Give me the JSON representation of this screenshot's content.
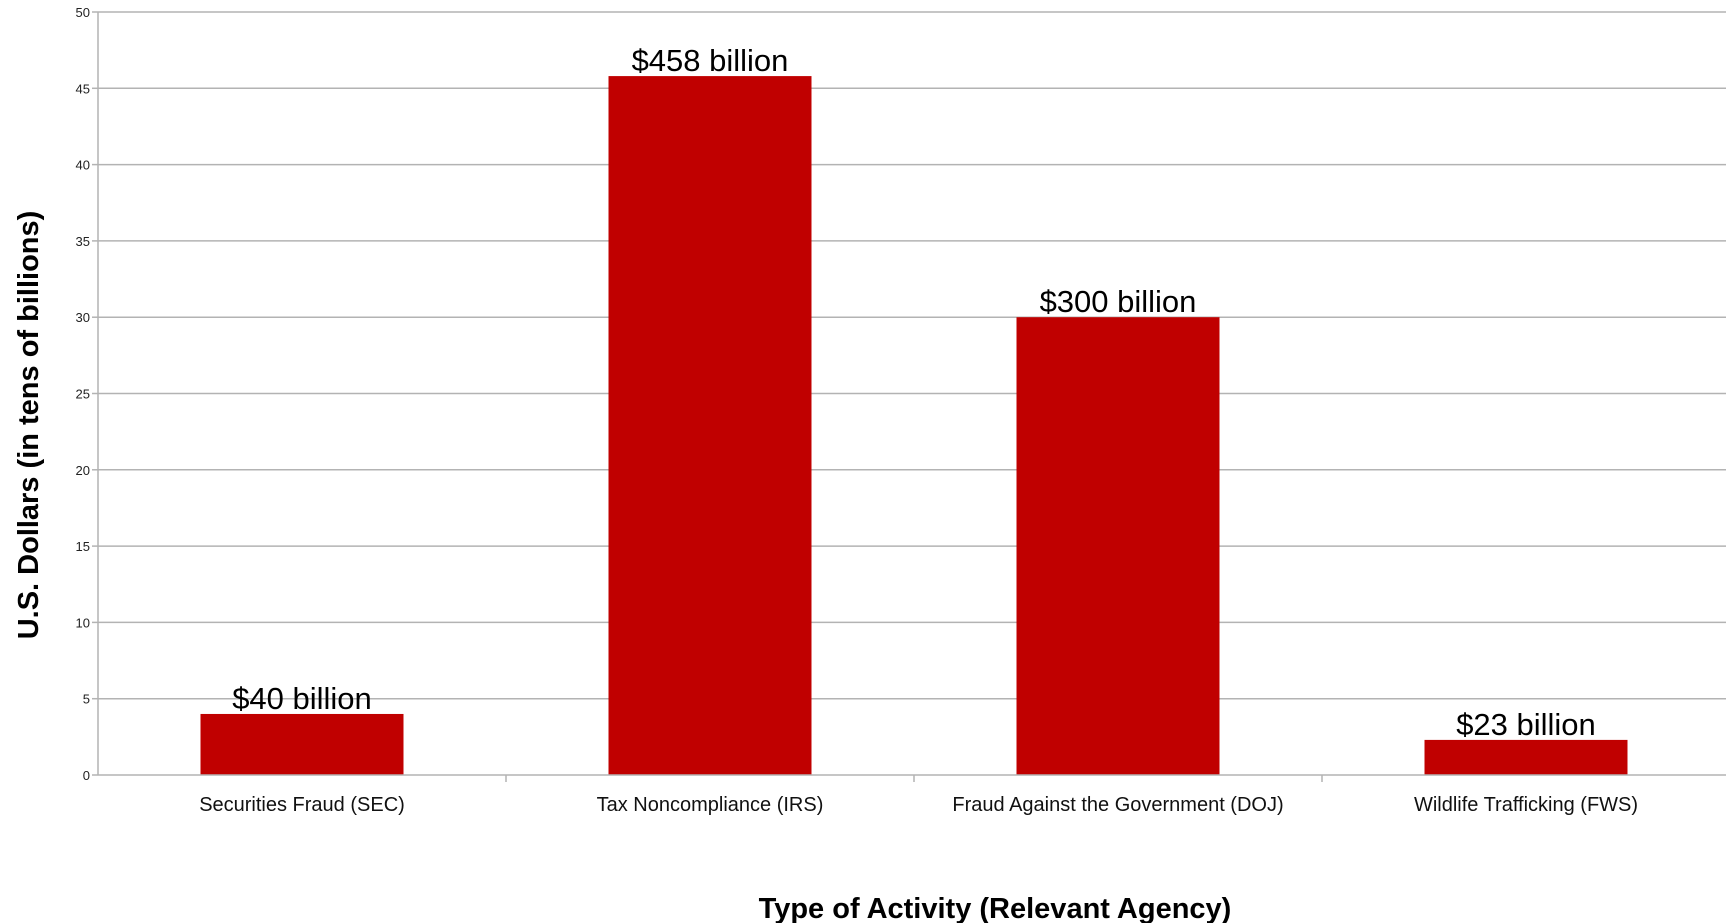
{
  "chart_data": {
    "type": "bar",
    "xlabel": "Type of Activity (Relevant Agency)",
    "ylabel": "U.S. Dollars (in tens of billions)",
    "ylim": [
      0,
      50
    ],
    "ytick_step": 5,
    "grid": true,
    "bar_color": "#c00000",
    "categories": [
      "Securities Fraud (SEC)",
      "Tax Noncompliance (IRS)",
      "Fraud Against the Government (DOJ)",
      "Wildlife Trafficking (FWS)"
    ],
    "values": [
      4.0,
      45.8,
      30.0,
      2.3
    ],
    "data_labels": [
      "$40 billion",
      "$458 billion",
      "$300 billion",
      "$23 billion"
    ]
  }
}
